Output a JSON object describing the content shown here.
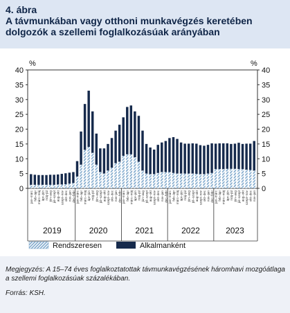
{
  "figure": {
    "number": "4. ábra",
    "title": "A távmunkában vagy otthoni munkavégzés keretében dolgozók a szellemi foglalkozásúak arányában"
  },
  "chart_data": {
    "type": "bar",
    "stacked": true,
    "unit_left": "%",
    "unit_right": "%",
    "ylim": [
      0,
      40
    ],
    "yticks": [
      0,
      5,
      10,
      15,
      20,
      25,
      30,
      35,
      40
    ],
    "grid": false,
    "legend_position": "bottom",
    "colors": {
      "regular": "#7fa8cc",
      "occasional": "#162a4c",
      "axis": "#333333"
    },
    "categories": [
      "jan–márc",
      "feb–ápr",
      "márc–máj",
      "ápr–jún",
      "máj–júl",
      "jún–aug",
      "júl–szept",
      "aug–okt",
      "szept–nov",
      "okt–dec",
      "nov–jan",
      "dec–febr",
      "jan–márc",
      "feb–ápr",
      "márc–máj",
      "ápr–jún",
      "máj–júl",
      "jún–aug",
      "júl–szept",
      "aug–okt",
      "szept–nov",
      "okt–dec",
      "nov–jan",
      "dec–febr",
      "jan–márc",
      "feb–ápr",
      "márc–máj",
      "ápr–jún",
      "máj–júl",
      "jún–aug",
      "júl–szept",
      "aug–okt",
      "szept–nov",
      "okt–dec",
      "nov–jan",
      "dec–febr",
      "jan–márc",
      "feb–ápr",
      "márc–máj",
      "ápr–jún",
      "máj–júl",
      "jún–aug",
      "júl–szept",
      "aug–okt",
      "szept–nov",
      "okt–dec",
      "nov–jan",
      "dec–febr",
      "jan–márc",
      "feb–ápr",
      "márc–máj",
      "ápr–jún",
      "máj–júl",
      "jún–aug",
      "júl–szept",
      "aug–okt",
      "szept–nov",
      "okt–dec",
      "nov–jan"
    ],
    "years": [
      "2019",
      "2020",
      "2021",
      "2022",
      "2023"
    ],
    "series": [
      {
        "name": "Rendszeresen",
        "values": [
          1.2,
          1.2,
          1.2,
          1.2,
          1.2,
          1.2,
          1.2,
          1.3,
          1.3,
          1.4,
          1.6,
          1.8,
          4.0,
          8.0,
          13.0,
          14.0,
          12.0,
          8.0,
          5.5,
          5.0,
          6.0,
          7.0,
          8.5,
          9.0,
          11.0,
          11.5,
          11.5,
          10.5,
          9.0,
          6.0,
          5.0,
          4.8,
          4.8,
          5.2,
          5.5,
          5.5,
          5.5,
          5.2,
          5.0,
          5.0,
          5.0,
          5.0,
          5.0,
          4.9,
          4.8,
          4.8,
          5.0,
          5.2,
          6.5,
          6.5,
          6.5,
          6.6,
          6.6,
          6.6,
          6.5,
          6.5,
          6.3,
          6.2,
          6.0
        ]
      },
      {
        "name": "Alkalmanként",
        "values": [
          3.6,
          3.4,
          3.3,
          3.3,
          3.3,
          3.4,
          3.4,
          3.4,
          3.6,
          3.7,
          3.7,
          3.7,
          5.2,
          11.2,
          15.5,
          19.0,
          14.0,
          10.5,
          8.0,
          8.5,
          9.0,
          10.0,
          11.0,
          12.5,
          13.0,
          16.0,
          16.5,
          15.5,
          15.5,
          13.5,
          10.0,
          9.0,
          8.3,
          9.5,
          10.0,
          10.5,
          11.5,
          12.1,
          11.7,
          10.5,
          10.1,
          10.1,
          10.2,
          10.2,
          9.8,
          9.6,
          9.7,
          10.0,
          8.6,
          8.7,
          8.7,
          8.6,
          8.4,
          8.5,
          8.9,
          8.5,
          8.8,
          8.9,
          10.0
        ]
      }
    ]
  },
  "note": "Megjegyzés: A 15–74 éves foglalkoztatottak távmunkavégzésének háromhavi mozgóátlaga a szellemi foglalkozásúak százalékában.",
  "source": "Forrás: KSH."
}
